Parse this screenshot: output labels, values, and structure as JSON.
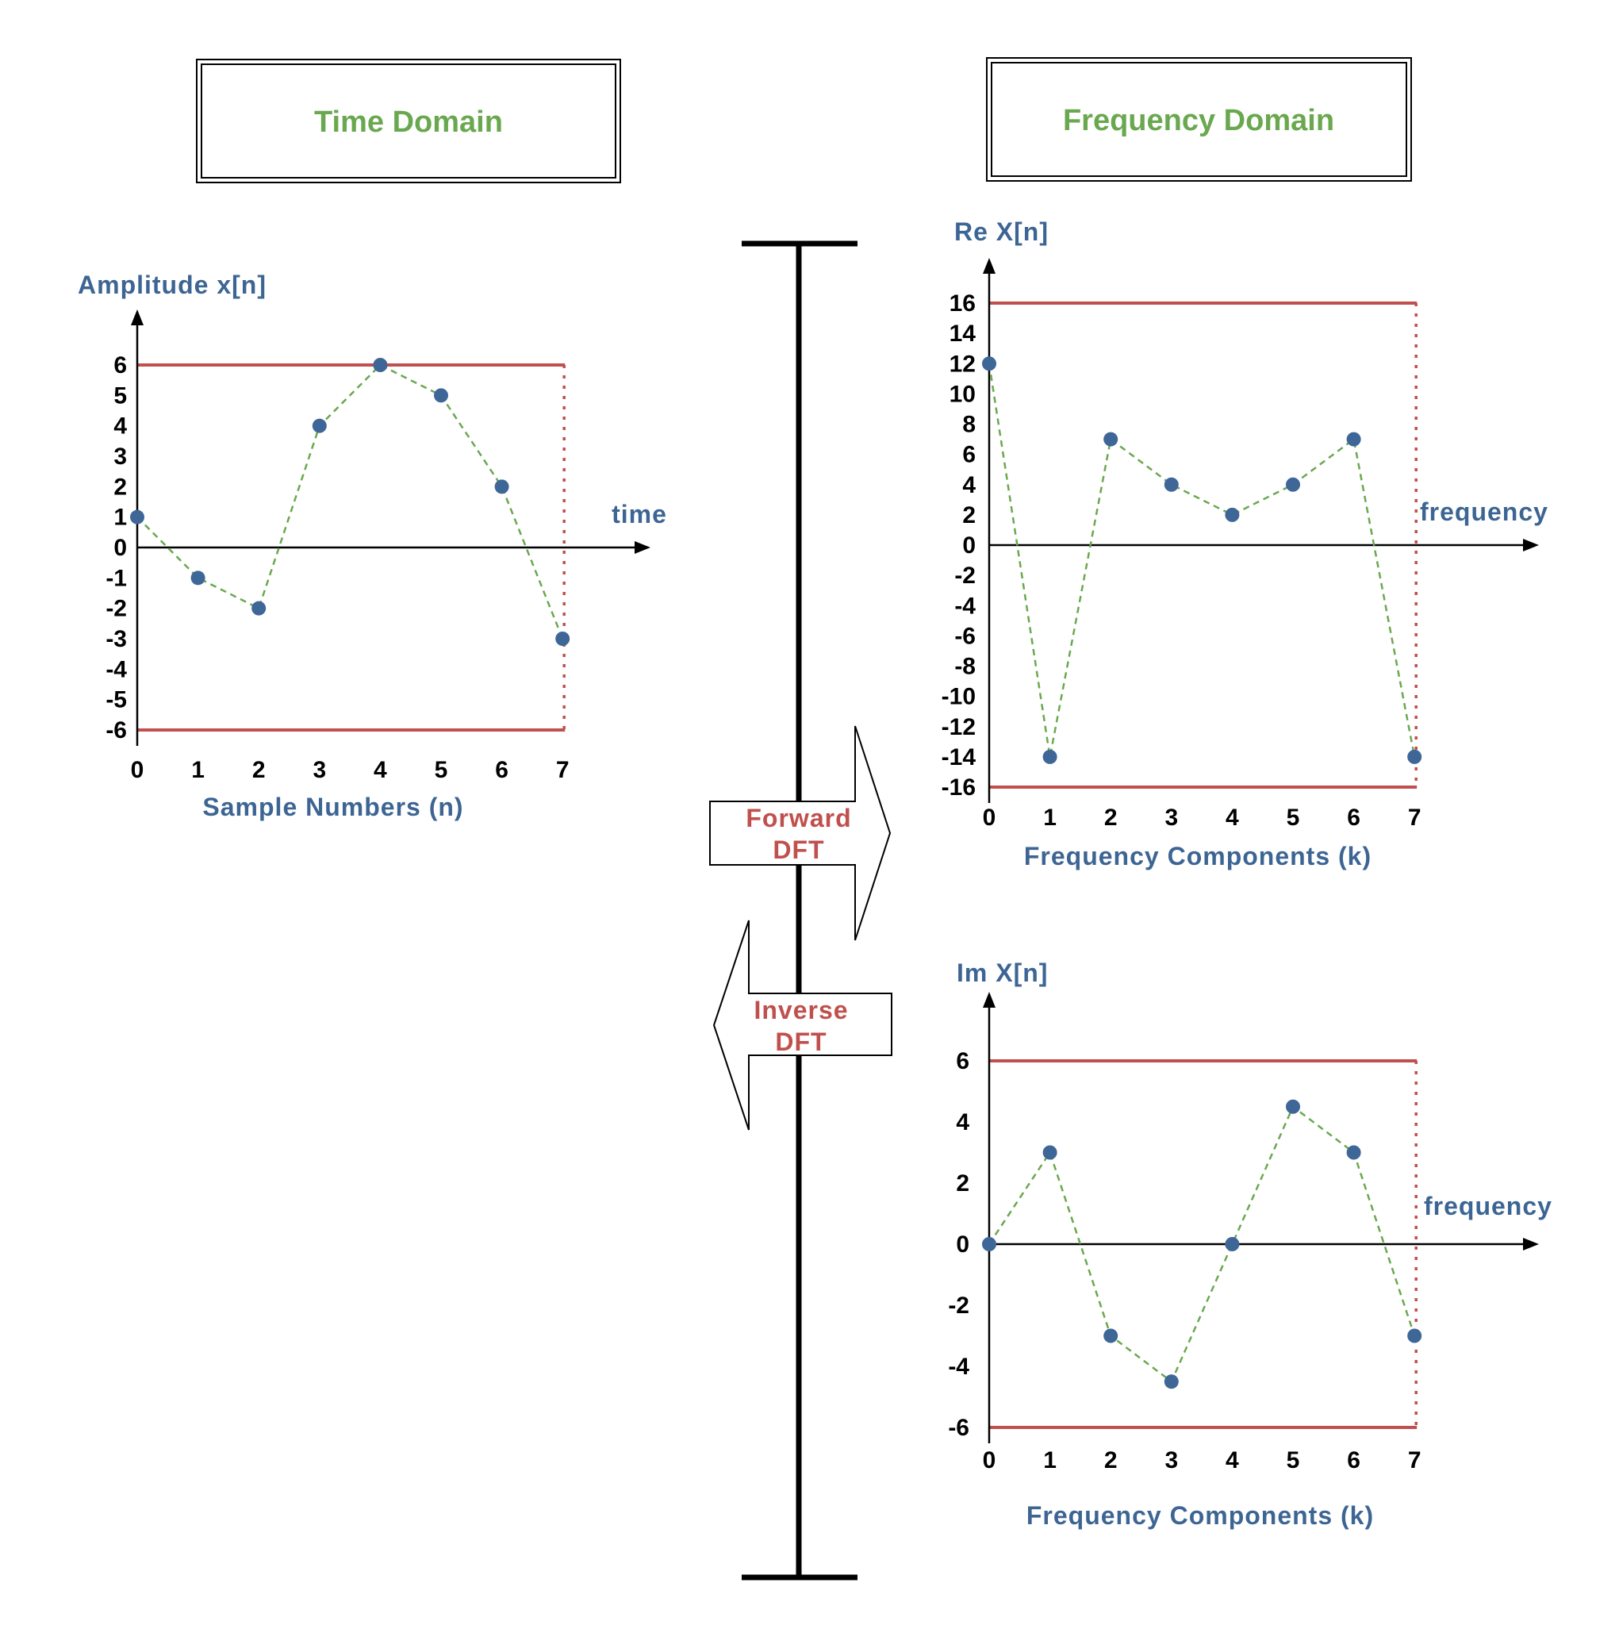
{
  "colors": {
    "title_green": "#6aa84f",
    "label_blue": "#3d6594",
    "bound_red": "#c0504d",
    "point_blue": "#3e6697",
    "dash_green": "#6aa84f",
    "arrow_label_red": "#c0504d"
  },
  "headers": {
    "time_domain": "Time Domain",
    "frequency_domain": "Frequency Domain"
  },
  "arrows": {
    "forward_line1": "Forward",
    "forward_line2": "DFT",
    "inverse_line1": "Inverse",
    "inverse_line2": "DFT"
  },
  "chart_data": [
    {
      "id": "time",
      "type": "scatter",
      "ylabel": "Amplitude  x[n]",
      "xlabel": "Sample Numbers (n)",
      "axis_end_label": "time",
      "x": [
        0,
        1,
        2,
        3,
        4,
        5,
        6,
        7
      ],
      "y": [
        1,
        -1,
        -2,
        4,
        6,
        5,
        2,
        -3
      ],
      "xticks": [
        "0",
        "1",
        "2",
        "3",
        "4",
        "5",
        "6",
        "7"
      ],
      "yticks": [
        6,
        5,
        4,
        3,
        2,
        1,
        0,
        -1,
        -2,
        -3,
        -4,
        -5,
        -6
      ],
      "ylim": [
        -6,
        6
      ],
      "bounds": [
        6,
        -6
      ]
    },
    {
      "id": "re",
      "type": "scatter",
      "ylabel": "Re  X[n]",
      "xlabel": "Frequency Components (k)",
      "axis_end_label": "frequency",
      "x": [
        0,
        1,
        2,
        3,
        4,
        5,
        6,
        7
      ],
      "y": [
        12,
        -14,
        7,
        4,
        2,
        4,
        7,
        -14
      ],
      "xticks": [
        "0",
        "1",
        "2",
        "3",
        "4",
        "5",
        "6",
        "7"
      ],
      "yticks": [
        16,
        14,
        12,
        10,
        8,
        6,
        4,
        2,
        0,
        -2,
        -4,
        -6,
        -8,
        -10,
        -12,
        -14,
        -16
      ],
      "ylim": [
        -16,
        16
      ],
      "bounds": [
        16,
        -16
      ]
    },
    {
      "id": "im",
      "type": "scatter",
      "ylabel": "Im  X[n]",
      "xlabel": "Frequency Components (k)",
      "axis_end_label": "frequency",
      "x": [
        0,
        1,
        2,
        3,
        4,
        5,
        6,
        7
      ],
      "y": [
        0,
        3,
        -3,
        -4.5,
        0,
        4.5,
        3,
        -3
      ],
      "xticks": [
        "0",
        "1",
        "2",
        "3",
        "4",
        "5",
        "6",
        "7"
      ],
      "yticks": [
        6,
        4,
        2,
        0,
        -2,
        -4,
        -6
      ],
      "ylim": [
        -6,
        6
      ],
      "bounds": [
        6,
        -6
      ]
    }
  ]
}
